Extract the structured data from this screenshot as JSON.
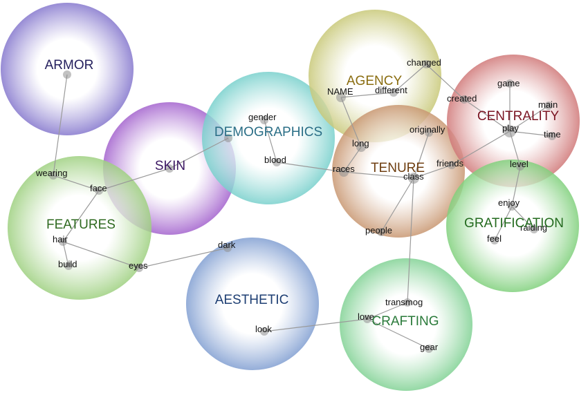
{
  "clusters": [
    {
      "id": "armor",
      "label": "ARMOR",
      "color": "#8c7fd0",
      "label_color": "#25205e"
    },
    {
      "id": "skin",
      "label": "SKIN",
      "color": "#a86bd0",
      "label_color": "#3c1863"
    },
    {
      "id": "demographics",
      "label": "DEMOGRAPHICS",
      "color": "#78d0cc",
      "label_color": "#2a6e86"
    },
    {
      "id": "agency",
      "label": "AGENCY",
      "color": "#c8c878",
      "label_color": "#8a6d10"
    },
    {
      "id": "tenure",
      "label": "TENURE",
      "color": "#c89670",
      "label_color": "#6e3e10"
    },
    {
      "id": "centrality",
      "label": "CENTRALITY",
      "color": "#d07878",
      "label_color": "#7a1422"
    },
    {
      "id": "features",
      "label": "FEATURES",
      "color": "#9ed080",
      "label_color": "#2f6a20"
    },
    {
      "id": "gratification",
      "label": "GRATIFICATION",
      "color": "#80d07c",
      "label_color": "#236a1e"
    },
    {
      "id": "aesthetic",
      "label": "AESTHETIC",
      "color": "#88a4d4",
      "label_color": "#1c3d72"
    },
    {
      "id": "crafting",
      "label": "CRAFTING",
      "color": "#88d49a",
      "label_color": "#2a7a3a"
    }
  ],
  "words": [
    {
      "id": "wearing",
      "text": "wearing"
    },
    {
      "id": "face",
      "text": "face"
    },
    {
      "id": "hair",
      "text": "hair"
    },
    {
      "id": "build",
      "text": "build"
    },
    {
      "id": "eyes",
      "text": "eyes"
    },
    {
      "id": "dark",
      "text": "dark"
    },
    {
      "id": "gender",
      "text": "gender"
    },
    {
      "id": "blood",
      "text": "blood"
    },
    {
      "id": "races",
      "text": "races"
    },
    {
      "id": "name",
      "text": "NAME"
    },
    {
      "id": "long",
      "text": "long"
    },
    {
      "id": "changed",
      "text": "changed"
    },
    {
      "id": "different",
      "text": "different"
    },
    {
      "id": "created",
      "text": "created"
    },
    {
      "id": "originally",
      "text": "originally"
    },
    {
      "id": "class",
      "text": "class"
    },
    {
      "id": "friends",
      "text": "friends"
    },
    {
      "id": "people",
      "text": "people"
    },
    {
      "id": "game",
      "text": "game"
    },
    {
      "id": "main",
      "text": "main"
    },
    {
      "id": "play",
      "text": "play"
    },
    {
      "id": "time",
      "text": "time"
    },
    {
      "id": "level",
      "text": "level"
    },
    {
      "id": "enjoy",
      "text": "enjoy"
    },
    {
      "id": "feel",
      "text": "feel"
    },
    {
      "id": "raiding",
      "text": "raiding"
    },
    {
      "id": "transmog",
      "text": "transmog"
    },
    {
      "id": "love",
      "text": "love"
    },
    {
      "id": "gear",
      "text": "gear"
    },
    {
      "id": "look",
      "text": "look"
    }
  ],
  "edges": [
    [
      "armor-center",
      "wearing"
    ],
    [
      "wearing",
      "face"
    ],
    [
      "face",
      "skin-center"
    ],
    [
      "skin-center",
      "demographics-center"
    ],
    [
      "face",
      "hair"
    ],
    [
      "hair",
      "build"
    ],
    [
      "hair",
      "eyes"
    ],
    [
      "eyes",
      "dark"
    ],
    [
      "gender",
      "blood"
    ],
    [
      "blood",
      "races"
    ],
    [
      "races",
      "class"
    ],
    [
      "races",
      "long"
    ],
    [
      "long",
      "name"
    ],
    [
      "name",
      "different"
    ],
    [
      "different",
      "changed"
    ],
    [
      "changed",
      "created"
    ],
    [
      "created",
      "play"
    ],
    [
      "originally",
      "class"
    ],
    [
      "class",
      "friends"
    ],
    [
      "friends",
      "play"
    ],
    [
      "class",
      "people"
    ],
    [
      "class",
      "transmog"
    ],
    [
      "transmog",
      "love"
    ],
    [
      "love",
      "gear"
    ],
    [
      "love",
      "look"
    ],
    [
      "play",
      "game"
    ],
    [
      "play",
      "main"
    ],
    [
      "play",
      "time"
    ],
    [
      "play",
      "level"
    ],
    [
      "level",
      "enjoy"
    ],
    [
      "enjoy",
      "feel"
    ],
    [
      "enjoy",
      "raiding"
    ]
  ]
}
